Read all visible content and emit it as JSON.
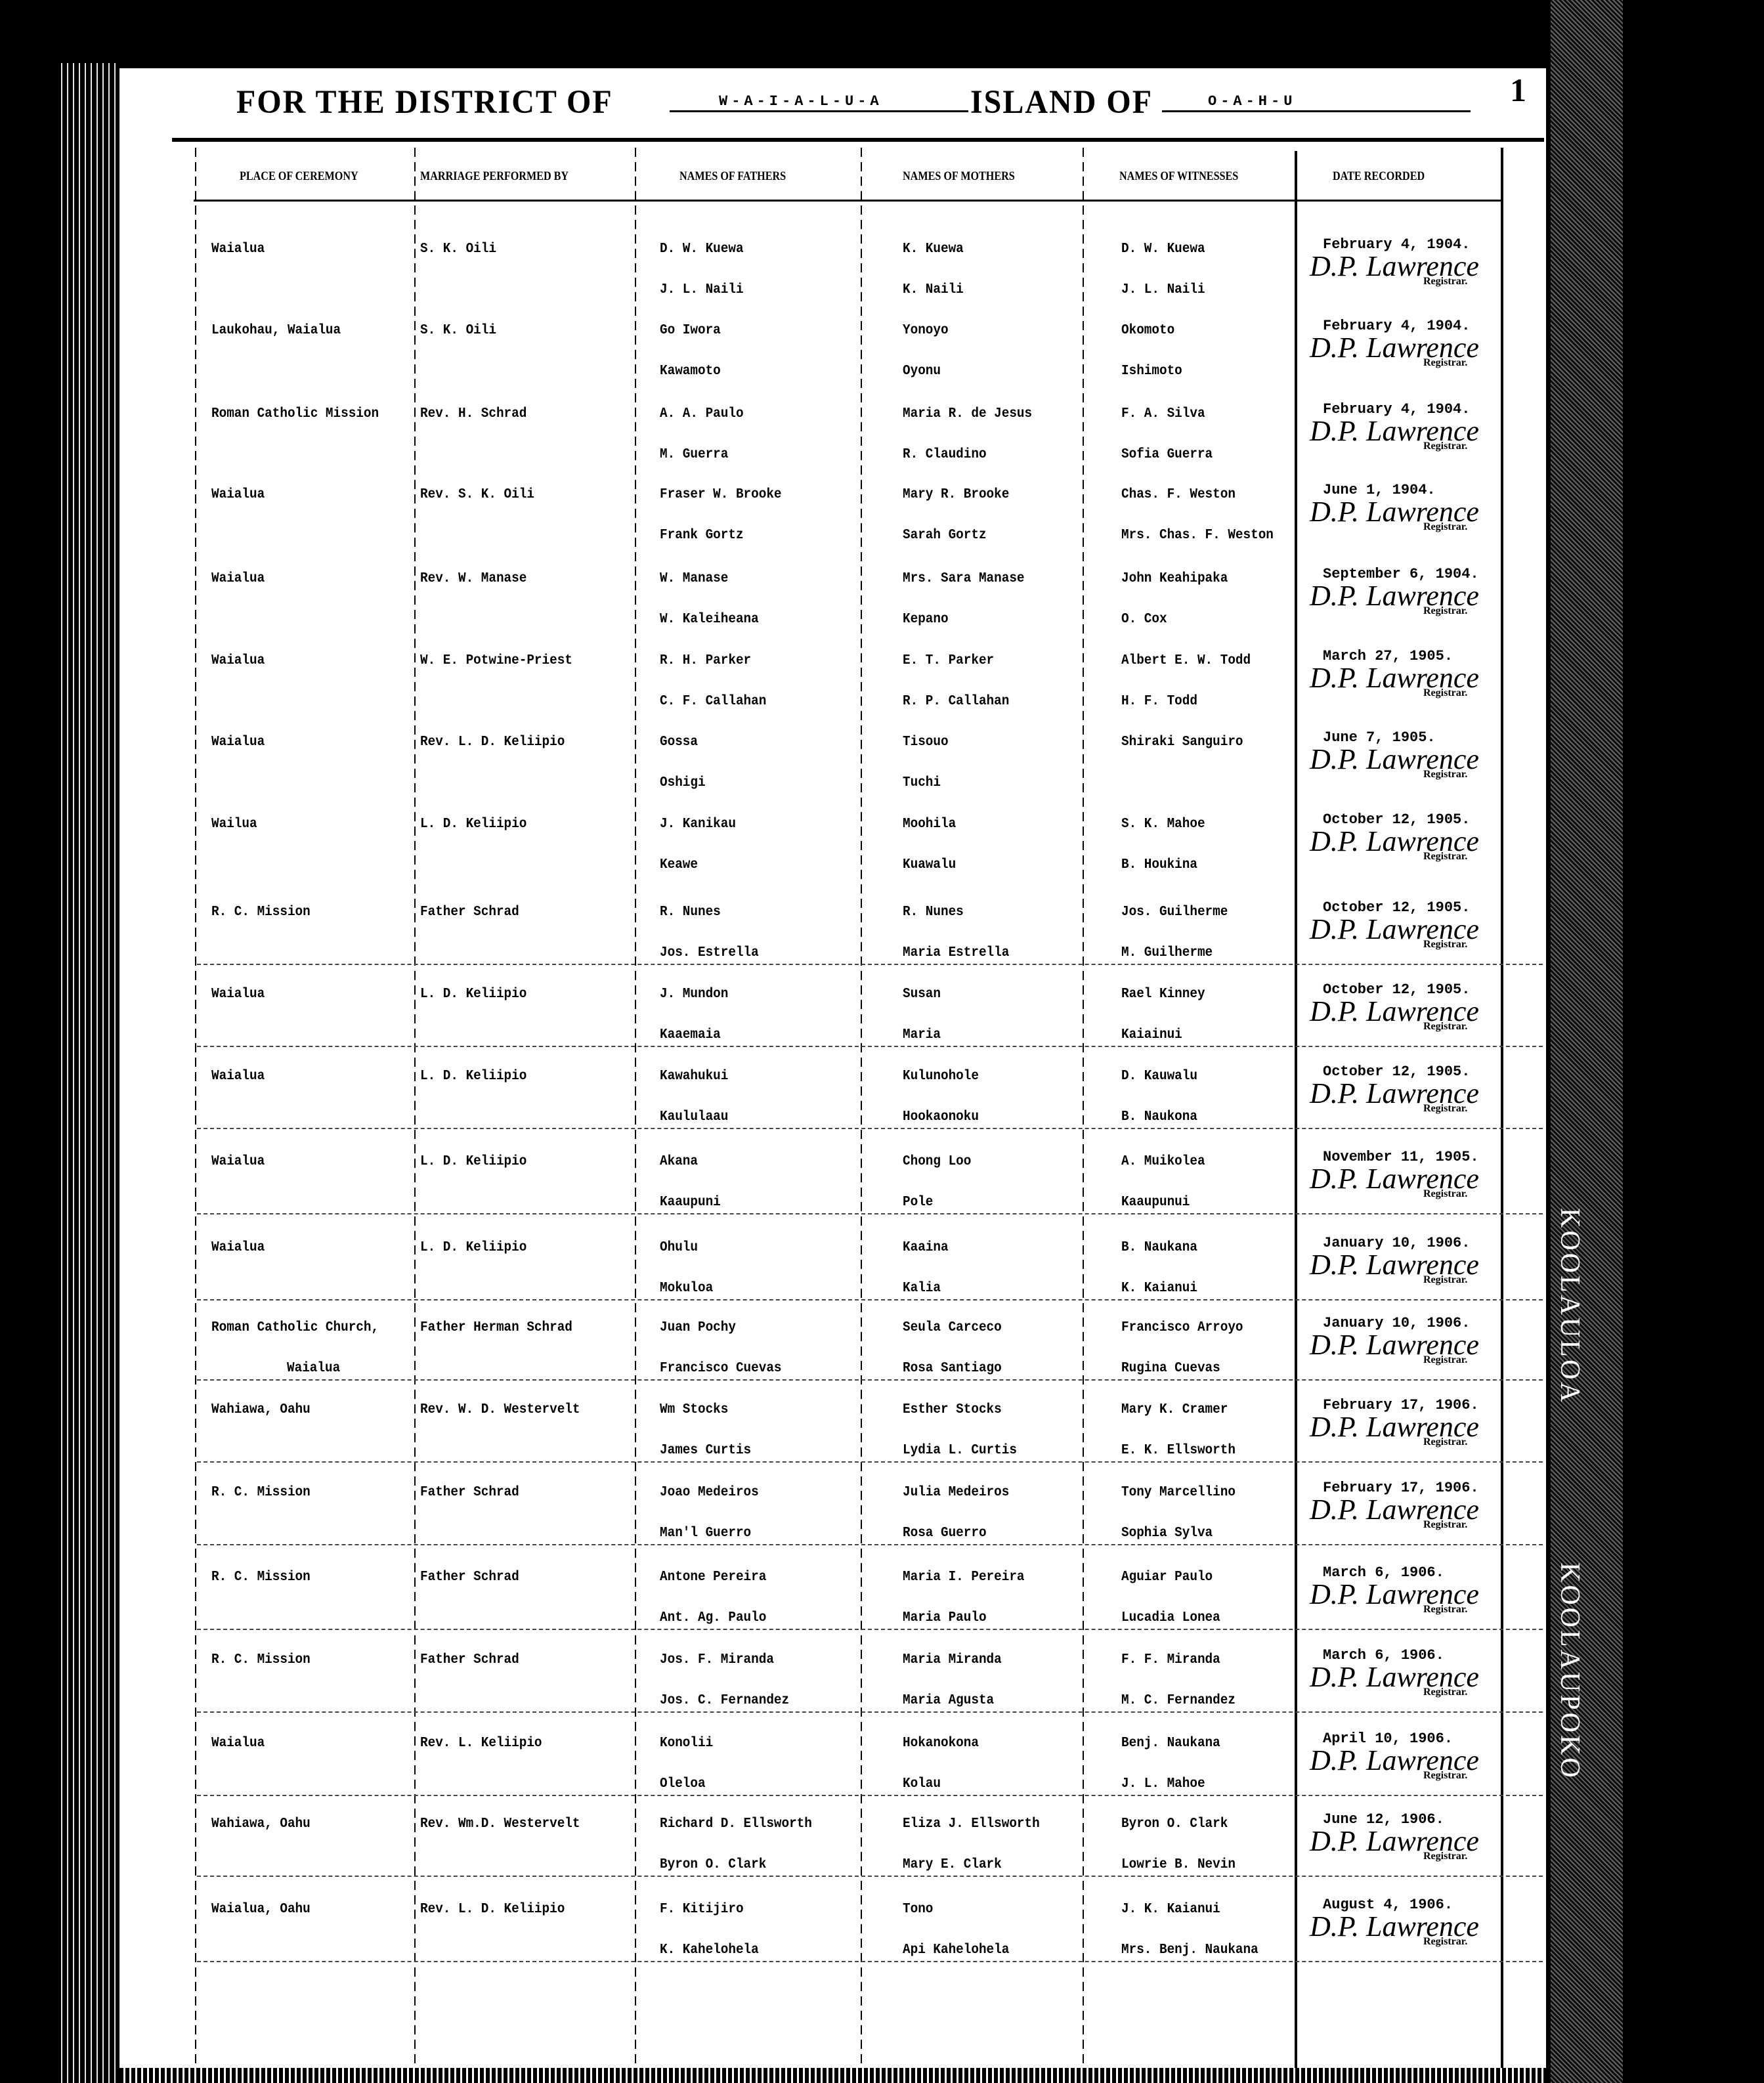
{
  "header": {
    "district_label": "FOR THE DISTRICT OF",
    "district": "W-A-I-A-L-U-A",
    "island_label": "ISLAND OF",
    "island": "O-A-H-U",
    "page_number": "1"
  },
  "columns": [
    "PLACE OF CEREMONY",
    "MARRIAGE PERFORMED BY",
    "NAMES OF FATHERS",
    "NAMES OF MOTHERS",
    "NAMES OF WITNESSES",
    "DATE RECORDED"
  ],
  "side_labels": [
    "KOOLAULOA",
    "KOOLAUPOKO"
  ],
  "records": [
    {
      "place": [
        "Waialua",
        ""
      ],
      "performed_by": "S. K. Oili",
      "fathers": [
        "D. W. Kuewa",
        "J. L. Naili"
      ],
      "mothers": [
        "K. Kuewa",
        "K. Naili"
      ],
      "witnesses": [
        "D. W. Kuewa",
        "J. L. Naili"
      ],
      "date": "February 4, 1904.",
      "signature": "D.P. Lawrence",
      "registrar": "Registrar."
    },
    {
      "place": [
        "Laukohau, Waialua",
        ""
      ],
      "performed_by": "S. K. Oili",
      "fathers": [
        "Go Iwora",
        "Kawamoto"
      ],
      "mothers": [
        "Yonoyo",
        "Oyonu"
      ],
      "witnesses": [
        "Okomoto",
        "Ishimoto"
      ],
      "date": "February 4, 1904.",
      "signature": "D.P. Lawrence",
      "registrar": "Registrar."
    },
    {
      "place": [
        "Roman Catholic Mission",
        ""
      ],
      "performed_by": "Rev. H. Schrad",
      "fathers": [
        "A. A. Paulo",
        "M. Guerra"
      ],
      "mothers": [
        "Maria R. de Jesus",
        "R. Claudino"
      ],
      "witnesses": [
        "F. A. Silva",
        "Sofia Guerra"
      ],
      "date": "February 4, 1904.",
      "signature": "D.P. Lawrence",
      "registrar": "Registrar."
    },
    {
      "place": [
        "Waialua",
        ""
      ],
      "performed_by": "Rev. S. K. Oili",
      "fathers": [
        "Fraser W. Brooke",
        "Frank Gortz"
      ],
      "mothers": [
        "Mary R. Brooke",
        "Sarah Gortz"
      ],
      "witnesses": [
        "Chas. F. Weston",
        "Mrs. Chas. F. Weston"
      ],
      "date": "June 1, 1904.",
      "signature": "D.P. Lawrence",
      "registrar": "Registrar."
    },
    {
      "place": [
        "Waialua",
        ""
      ],
      "performed_by": "Rev. W. Manase",
      "fathers": [
        "W. Manase",
        "W. Kaleiheana"
      ],
      "mothers": [
        "Mrs. Sara Manase",
        "Kepano"
      ],
      "witnesses": [
        "John Keahipaka",
        "O. Cox"
      ],
      "date": "September 6, 1904.",
      "signature": "D.P. Lawrence",
      "registrar": "Registrar."
    },
    {
      "place": [
        "Waialua",
        ""
      ],
      "performed_by": "W. E. Potwine-Priest",
      "fathers": [
        "R. H. Parker",
        "C. F. Callahan"
      ],
      "mothers": [
        "E. T. Parker",
        "R. P. Callahan"
      ],
      "witnesses": [
        "Albert E. W. Todd",
        "H. F. Todd"
      ],
      "date": "March 27, 1905.",
      "signature": "D.P. Lawrence",
      "registrar": "Registrar."
    },
    {
      "place": [
        "Waialua",
        ""
      ],
      "performed_by": "Rev. L. D. Keliipio",
      "fathers": [
        "Gossa",
        "Oshigi"
      ],
      "mothers": [
        "Tisouo",
        "Tuchi"
      ],
      "witnesses": [
        "Shiraki Sanguiro",
        ""
      ],
      "date": "June 7, 1905.",
      "signature": "D.P. Lawrence",
      "registrar": "Registrar."
    },
    {
      "place": [
        "Wailua",
        ""
      ],
      "performed_by": "L. D. Keliipio",
      "fathers": [
        "J. Kanikau",
        "Keawe"
      ],
      "mothers": [
        "Moohila",
        "Kuawalu"
      ],
      "witnesses": [
        "S. K. Mahoe",
        "B. Houkina"
      ],
      "date": "October 12, 1905.",
      "signature": "D.P. Lawrence",
      "registrar": "Registrar."
    },
    {
      "place": [
        "R. C. Mission",
        ""
      ],
      "performed_by": "Father Schrad",
      "fathers": [
        "R. Nunes",
        "Jos. Estrella"
      ],
      "mothers": [
        "R. Nunes",
        "Maria Estrella"
      ],
      "witnesses": [
        "Jos. Guilherme",
        "M. Guilherme"
      ],
      "date": "October 12, 1905.",
      "signature": "D.P. Lawrence",
      "registrar": "Registrar."
    },
    {
      "place": [
        "Waialua",
        ""
      ],
      "performed_by": "L. D. Keliipio",
      "fathers": [
        "J. Mundon",
        "Kaaemaia"
      ],
      "mothers": [
        "Susan",
        "Maria"
      ],
      "witnesses": [
        "Rael Kinney",
        "Kaiainui"
      ],
      "date": "October 12, 1905.",
      "signature": "D.P. Lawrence",
      "registrar": "Registrar."
    },
    {
      "place": [
        "Waialua",
        ""
      ],
      "performed_by": "L. D. Keliipio",
      "fathers": [
        "Kawahukui",
        "Kaululaau"
      ],
      "mothers": [
        "Kulunohole",
        "Hookaonoku"
      ],
      "witnesses": [
        "D. Kauwalu",
        "B. Naukona"
      ],
      "date": "October 12, 1905.",
      "signature": "D.P. Lawrence",
      "registrar": "Registrar."
    },
    {
      "place": [
        "Waialua",
        ""
      ],
      "performed_by": "L. D. Keliipio",
      "fathers": [
        "Akana",
        "Kaaupuni"
      ],
      "mothers": [
        "Chong Loo",
        "Pole"
      ],
      "witnesses": [
        "A. Muikolea",
        "Kaaupunui"
      ],
      "date": "November 11, 1905.",
      "signature": "D.P. Lawrence",
      "registrar": "Registrar."
    },
    {
      "place": [
        "Waialua",
        ""
      ],
      "performed_by": "L. D. Keliipio",
      "fathers": [
        "Ohulu",
        "Mokuloa"
      ],
      "mothers": [
        "Kaaina",
        "Kalia"
      ],
      "witnesses": [
        "B. Naukana",
        "K. Kaianui"
      ],
      "date": "January 10, 1906.",
      "signature": "D.P. Lawrence",
      "registrar": "Registrar."
    },
    {
      "place": [
        "Roman Catholic Church,",
        "Waialua"
      ],
      "performed_by": "Father Herman Schrad",
      "fathers": [
        "Juan Pochy",
        "Francisco Cuevas"
      ],
      "mothers": [
        "Seula Carceco",
        "Rosa Santiago"
      ],
      "witnesses": [
        "Francisco Arroyo",
        "Rugina Cuevas"
      ],
      "date": "January 10, 1906.",
      "signature": "D.P. Lawrence",
      "registrar": "Registrar."
    },
    {
      "place": [
        "Wahiawa, Oahu",
        ""
      ],
      "performed_by": "Rev. W. D. Westervelt",
      "fathers": [
        "Wm Stocks",
        "James Curtis"
      ],
      "mothers": [
        "Esther Stocks",
        "Lydia L. Curtis"
      ],
      "witnesses": [
        "Mary K. Cramer",
        "E. K. Ellsworth"
      ],
      "date": "February 17, 1906.",
      "signature": "D.P. Lawrence",
      "registrar": "Registrar."
    },
    {
      "place": [
        "R. C. Mission",
        ""
      ],
      "performed_by": "Father Schrad",
      "fathers": [
        "Joao Medeiros",
        "Man'l Guerro"
      ],
      "mothers": [
        "Julia Medeiros",
        "Rosa Guerro"
      ],
      "witnesses": [
        "Tony Marcellino",
        "Sophia Sylva"
      ],
      "date": "February 17, 1906.",
      "signature": "D.P. Lawrence",
      "registrar": "Registrar."
    },
    {
      "place": [
        "R. C. Mission",
        ""
      ],
      "performed_by": "Father Schrad",
      "fathers": [
        "Antone Pereira",
        "Ant. Ag. Paulo"
      ],
      "mothers": [
        "Maria I. Pereira",
        "Maria Paulo"
      ],
      "witnesses": [
        "Aguiar Paulo",
        "Lucadia Lonea"
      ],
      "date": "March 6, 1906.",
      "signature": "D.P. Lawrence",
      "registrar": "Registrar."
    },
    {
      "place": [
        "R. C. Mission",
        ""
      ],
      "performed_by": "Father Schrad",
      "fathers": [
        "Jos. F. Miranda",
        "Jos. C. Fernandez"
      ],
      "mothers": [
        "Maria Miranda",
        "Maria Agusta"
      ],
      "witnesses": [
        "F. F. Miranda",
        "M. C. Fernandez"
      ],
      "date": "March 6, 1906.",
      "signature": "D.P. Lawrence",
      "registrar": "Registrar."
    },
    {
      "place": [
        "Waialua",
        ""
      ],
      "performed_by": "Rev. L. Keliipio",
      "fathers": [
        "Konolii",
        "Oleloa"
      ],
      "mothers": [
        "Hokanokona",
        "Kolau"
      ],
      "witnesses": [
        "Benj. Naukana",
        "J. L. Mahoe"
      ],
      "date": "April 10, 1906.",
      "signature": "D.P. Lawrence",
      "registrar": "Registrar."
    },
    {
      "place": [
        "Wahiawa, Oahu",
        ""
      ],
      "performed_by": "Rev. Wm.D. Westervelt",
      "fathers": [
        "Richard D. Ellsworth",
        "Byron O. Clark"
      ],
      "mothers": [
        "Eliza J. Ellsworth",
        "Mary E. Clark"
      ],
      "witnesses": [
        "Byron O. Clark",
        "Lowrie B. Nevin"
      ],
      "date": "June 12, 1906.",
      "signature": "D.P. Lawrence",
      "registrar": "Registrar."
    },
    {
      "place": [
        "Waialua, Oahu",
        ""
      ],
      "performed_by": "Rev. L. D. Keliipio",
      "fathers": [
        "F. Kitijiro",
        "K. Kahelohela"
      ],
      "mothers": [
        "Tono",
        "Api Kahelohela"
      ],
      "witnesses": [
        "J. K. Kaianui",
        "Mrs. Benj. Naukana"
      ],
      "date": "August 4, 1906.",
      "signature": "D.P. Lawrence",
      "registrar": "Registrar."
    }
  ]
}
